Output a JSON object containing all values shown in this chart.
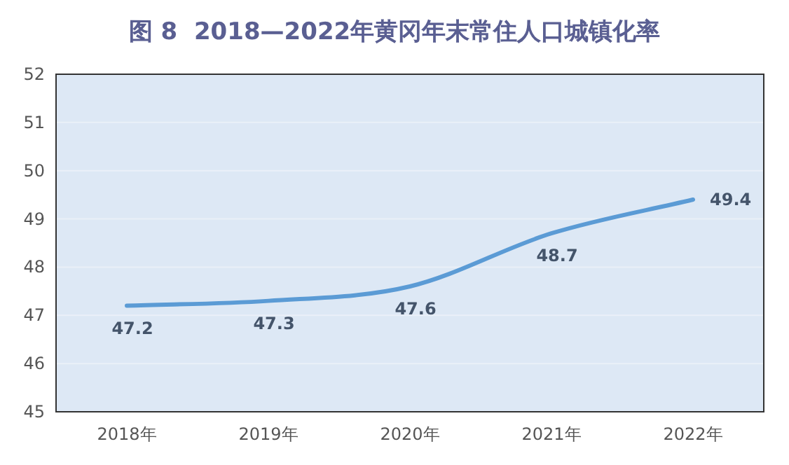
{
  "chart_data": {
    "type": "line",
    "title": "图 8  2018—2022年黄冈年末常住人口城镇化率",
    "categories": [
      "2018年",
      "2019年",
      "2020年",
      "2021年",
      "2022年"
    ],
    "series": [
      {
        "color": "#5b9bd5",
        "values": [
          47.2,
          47.3,
          47.6,
          48.7,
          49.4
        ]
      }
    ],
    "ylim": [
      45,
      52
    ],
    "yticks": [
      45,
      46,
      47,
      48,
      49,
      50,
      51,
      52
    ],
    "grid": "y",
    "data_labels": true,
    "marker": "none",
    "line_style": "solid"
  }
}
